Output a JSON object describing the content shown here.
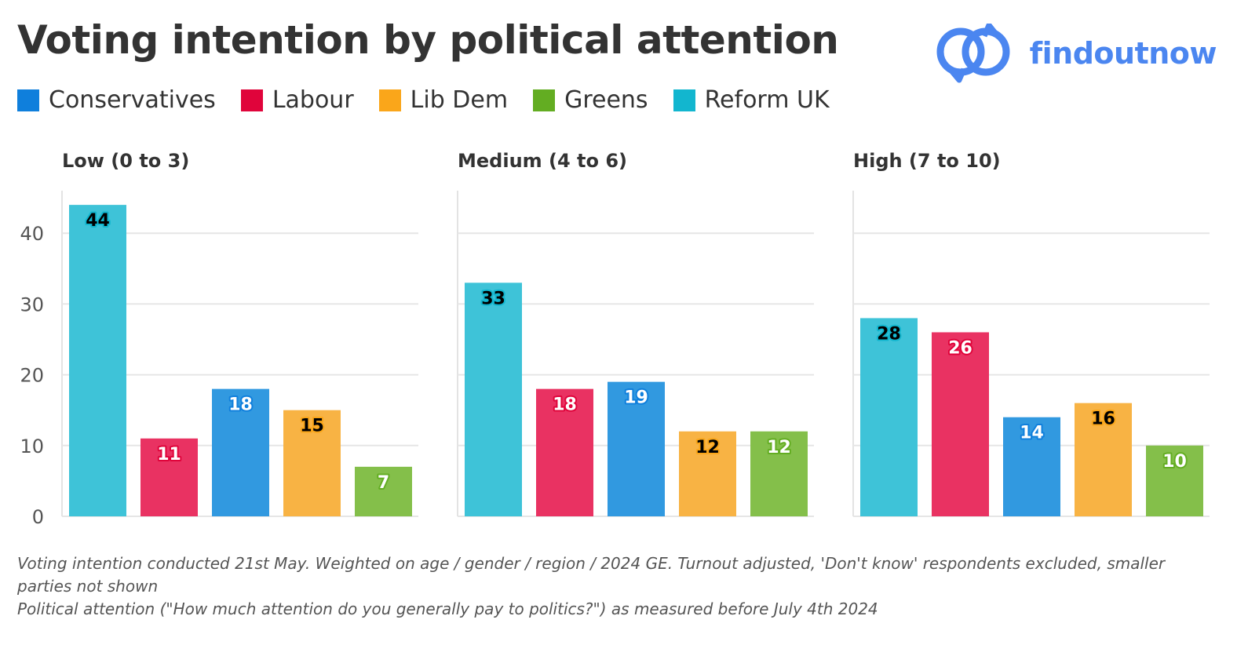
{
  "title": "Voting intention by political attention",
  "logo": {
    "text": "findoutnow",
    "color": "#4b86f0"
  },
  "legend": [
    {
      "label": "Conservatives",
      "color": "#0f7fdc"
    },
    {
      "label": "Labour",
      "color": "#e0043b"
    },
    {
      "label": "Lib Dem",
      "color": "#faa61a"
    },
    {
      "label": "Greens",
      "color": "#63ad22"
    },
    {
      "label": "Reform UK",
      "color": "#12b6cf"
    }
  ],
  "footnote": {
    "line1": "Voting intention conducted 21st May. Weighted on age / gender / region / 2024 GE. Turnout adjusted, 'Don't know' respondents excluded, smaller parties not shown",
    "line2": "Political attention (\"How much attention do you generally pay to politics?\") as measured before July 4th 2024"
  },
  "chart_data": {
    "type": "bar",
    "yticks": [
      0,
      10,
      20,
      30,
      40
    ],
    "ylim": [
      0,
      46
    ],
    "grid": true,
    "legend_position": "top-left",
    "categories": [
      "Reform UK",
      "Labour",
      "Conservatives",
      "Lib Dem",
      "Greens"
    ],
    "colors": [
      "#3ec3d8",
      "#e93262",
      "#3199e0",
      "#f8b344",
      "#84bf4a"
    ],
    "label_text_colors": [
      "#000000",
      "#ffffff",
      "#ffffff",
      "#000000",
      "#ffffff"
    ],
    "label_halo_colors": [
      "#12b6cf",
      "#e0043b",
      "#0f7fdc",
      "#faa61a",
      "#63ad22"
    ],
    "panels": [
      {
        "title": "Low (0 to 3)",
        "values": [
          44,
          11,
          18,
          15,
          7
        ]
      },
      {
        "title": "Medium (4 to 6)",
        "values": [
          33,
          18,
          19,
          12,
          12
        ]
      },
      {
        "title": "High (7 to 10)",
        "values": [
          28,
          26,
          14,
          16,
          10
        ]
      }
    ]
  }
}
